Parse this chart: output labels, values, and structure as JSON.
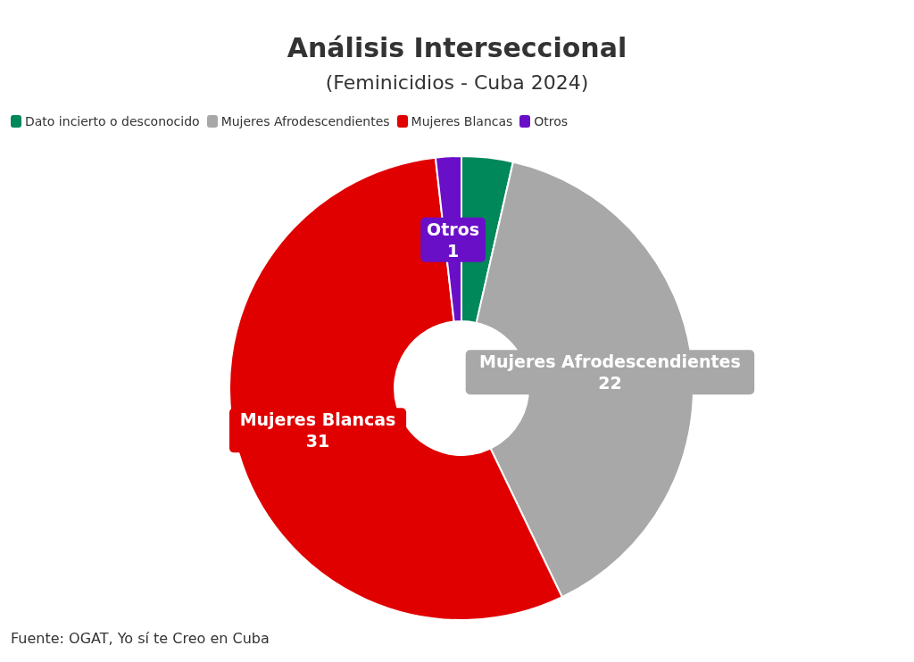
{
  "chart_data": {
    "type": "donut",
    "title": "Análisis Interseccional",
    "subtitle": "(Feminicidios - Cuba 2024)",
    "categories": [
      "Dato incierto o desconocido",
      "Mujeres Afrodescendientes",
      "Mujeres Blancas",
      "Otros"
    ],
    "values": [
      2,
      22,
      31,
      1
    ],
    "colors": [
      "#00875a",
      "#a8a8a8",
      "#e00000",
      "#6a0fc8"
    ],
    "value_labels": [
      null,
      "22",
      "31",
      "1"
    ],
    "legend": "top left",
    "annotations": [
      "Fuente: OGAT, Yo sí te Creo en Cuba"
    ]
  }
}
